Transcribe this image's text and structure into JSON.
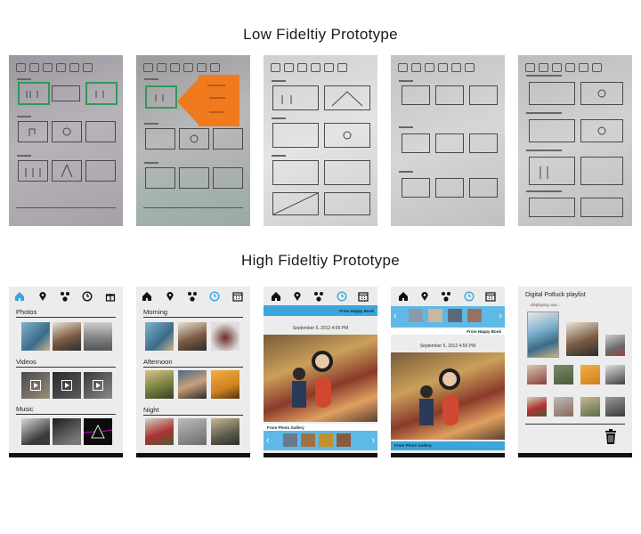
{
  "headings": {
    "low": "Low Fideltiy Prototype",
    "high": "High Fideltiy Prototype"
  },
  "screen1": {
    "sections": [
      "Photos",
      "Videos",
      "Music"
    ]
  },
  "screen2": {
    "sections": [
      "Morning",
      "Afternoon",
      "Night"
    ]
  },
  "screen3": {
    "ribbon_top": "From Happy Book",
    "date": "September 5, 2012  4:55 PM",
    "ribbon_bottom": "From Photo Gallery"
  },
  "screen4": {
    "ribbon_top": "From Happy Book",
    "date": "September 5, 2012  4:55 PM",
    "ribbon_bottom": "From Photo Gallery"
  },
  "screen5": {
    "title": "Digital Potluck playlist",
    "subtitle": "displaying now..."
  },
  "colors": {
    "accent": "#3aa6dc",
    "sketch_green": "#2e9a5a",
    "sticky_orange": "#f07a1e"
  },
  "icons": [
    "home-icon",
    "map-pin-icon",
    "paw-icon",
    "clock-icon",
    "calendar-icon",
    "trash-icon"
  ]
}
